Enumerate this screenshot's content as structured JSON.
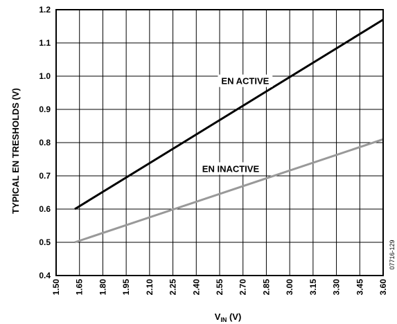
{
  "chart_data": {
    "type": "line",
    "xlabel_main": "V",
    "xlabel_sub": "IN",
    "xlabel_unit": " (V)",
    "ylabel": "TYPICAL EN TRESHOLDS (V)",
    "xlim": [
      1.5,
      3.6
    ],
    "ylim": [
      0.4,
      1.2
    ],
    "x_ticks": [
      "1.50",
      "1.65",
      "1.80",
      "1.95",
      "2.10",
      "2.25",
      "2.40",
      "2.55",
      "2.70",
      "2.85",
      "3.00",
      "3.15",
      "3.30",
      "3.45",
      "3.60"
    ],
    "y_ticks": [
      "0.4",
      "0.5",
      "0.6",
      "0.7",
      "0.8",
      "0.9",
      "1.0",
      "1.1",
      "1.2"
    ],
    "grid": true,
    "series": [
      {
        "name": "EN ACTIVE",
        "color": "#000000",
        "x": [
          1.62,
          3.6
        ],
        "y": [
          0.6,
          1.17
        ]
      },
      {
        "name": "EN INACTIVE",
        "color": "#999999",
        "x": [
          1.62,
          3.6
        ],
        "y": [
          0.5,
          0.81
        ]
      }
    ],
    "figure_id": "07716-129"
  }
}
